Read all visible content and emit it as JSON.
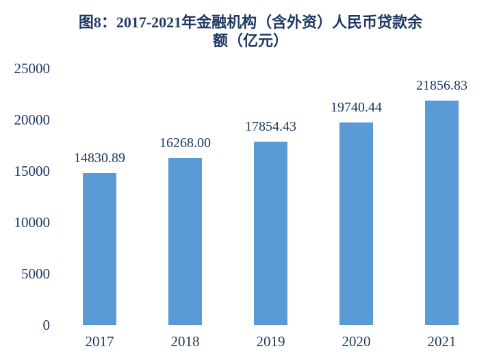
{
  "chart_data": {
    "type": "bar",
    "title": "图8：2017-2021年金融机构（含外资）人民币贷款余额（亿元）",
    "title_lines": [
      "图8：2017-2021年金融机构（含外资）人民币贷款余",
      "额（亿元）"
    ],
    "categories": [
      "2017",
      "2018",
      "2019",
      "2020",
      "2021"
    ],
    "values": [
      14830.89,
      16268.0,
      17854.43,
      19740.44,
      21856.83
    ],
    "value_labels": [
      "14830.89",
      "16268.00",
      "17854.43",
      "19740.44",
      "21856.83"
    ],
    "xlabel": "",
    "ylabel": "",
    "ylim": [
      0,
      25000
    ],
    "y_ticks": [
      0,
      5000,
      10000,
      15000,
      20000,
      25000
    ],
    "y_tick_labels": [
      "0",
      "5000",
      "10000",
      "15000",
      "20000",
      "25000"
    ],
    "grid": false,
    "legend": false,
    "bar_color": "#5B9BD5",
    "text_color": "#1F3864",
    "background_color": "#FFFFFF"
  }
}
